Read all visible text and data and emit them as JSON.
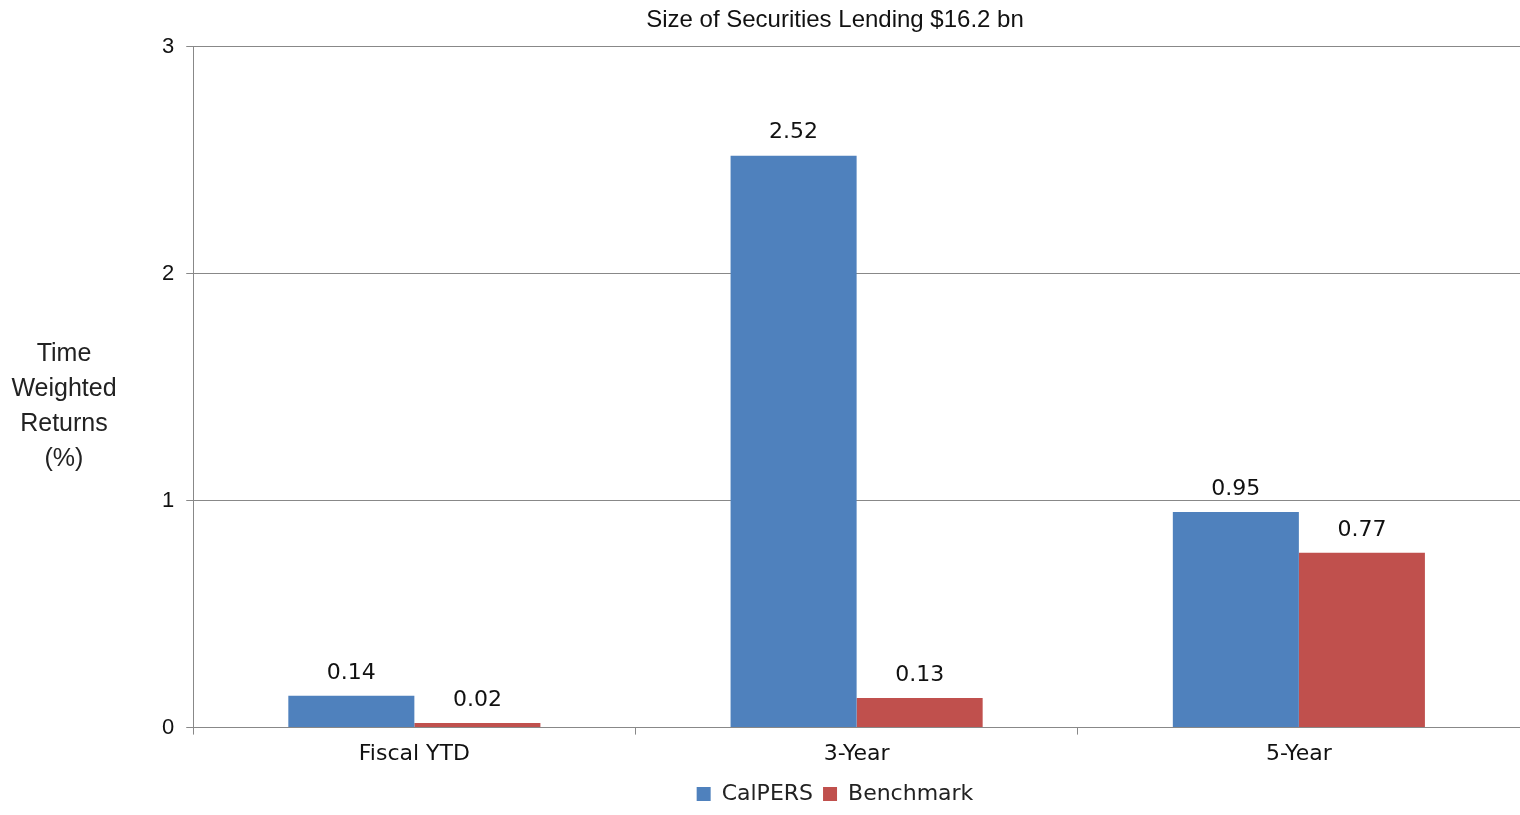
{
  "chart_data": {
    "type": "bar",
    "title": "Size of Securities Lending $16.2 bn",
    "ylabel": "Time Weighted Returns (%)",
    "categories": [
      "Fiscal YTD",
      "3-Year",
      "5-Year"
    ],
    "series": [
      {
        "name": "CalPERS",
        "color": "#4f81bd",
        "values": [
          0.14,
          2.52,
          0.95
        ]
      },
      {
        "name": "Benchmark",
        "color": "#c0504d",
        "values": [
          0.02,
          0.13,
          0.77
        ]
      }
    ],
    "ylim": [
      0,
      3
    ],
    "yticks": [
      0,
      1,
      2,
      3
    ],
    "grid": "y",
    "legend": "bottom",
    "data_labels": true
  }
}
